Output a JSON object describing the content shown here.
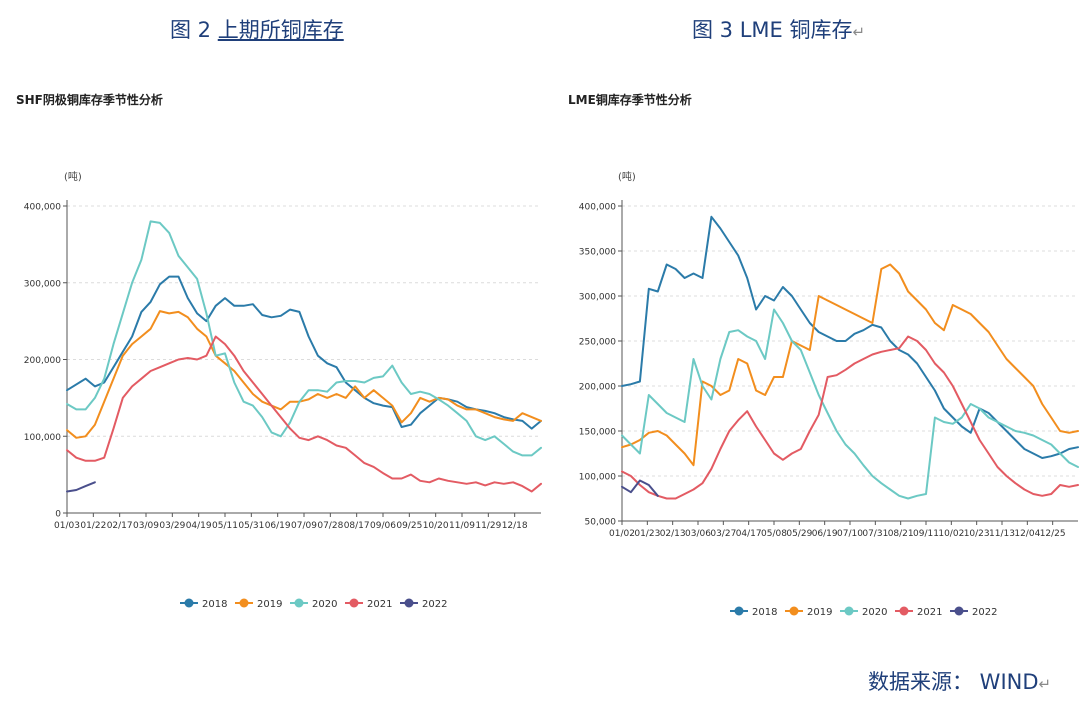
{
  "captions": {
    "left_prefix": "图 2",
    "left_title": "上期所铜库存",
    "right_text": "图 3 LME 铜库存",
    "return_mark": "↵"
  },
  "source": {
    "text": "数据来源： WIND"
  },
  "colors": {
    "2018": "#2b7ba9",
    "2019": "#f28e1e",
    "2020": "#6cc9c4",
    "2021": "#e35b63",
    "2022": "#4a4f8c"
  },
  "chart_data": [
    {
      "type": "line",
      "title": "SHF阴极铜库存季节性分析",
      "ylabel": "(吨)",
      "ylim": [
        0,
        400000
      ],
      "yticks": [
        0,
        100000,
        200000,
        300000,
        400000
      ],
      "ytick_labels": [
        "0",
        "100,000",
        "200,000",
        "300,000",
        "400,000"
      ],
      "xlim": [
        0,
        51
      ],
      "xtick_labels": [
        "01/03",
        "01/22",
        "02/17",
        "03/09",
        "03/29",
        "04/19",
        "05/11",
        "05/31",
        "06/19",
        "07/09",
        "07/28",
        "08/17",
        "09/06",
        "09/25",
        "10/20",
        "11/09",
        "11/29",
        "12/18"
      ],
      "grid": "horizontal-dashed",
      "legend_position": "bottom-center",
      "series": [
        {
          "name": "2018",
          "x": [
            0,
            2,
            3,
            4,
            6,
            7,
            8,
            9,
            10,
            11,
            12,
            13,
            14,
            15,
            16,
            17,
            18,
            19,
            20,
            21,
            22,
            23,
            24,
            25,
            26,
            27,
            28,
            29,
            30,
            31,
            32,
            33,
            34,
            35,
            36,
            37,
            38,
            39,
            40,
            41,
            42,
            43,
            44,
            45,
            46,
            47,
            48,
            49,
            50,
            51
          ],
          "y": [
            160000,
            175000,
            165000,
            170000,
            210000,
            230000,
            262000,
            275000,
            298000,
            308000,
            308000,
            280000,
            260000,
            250000,
            270000,
            280000,
            270000,
            270000,
            272000,
            258000,
            255000,
            257000,
            265000,
            262000,
            230000,
            205000,
            195000,
            190000,
            170000,
            160000,
            150000,
            143000,
            140000,
            138000,
            112000,
            115000,
            130000,
            140000,
            150000,
            148000,
            145000,
            138000,
            135000,
            133000,
            130000,
            125000,
            122000,
            120000,
            110000,
            120000
          ]
        },
        {
          "name": "2019",
          "x": [
            0,
            1,
            2,
            3,
            4,
            5,
            6,
            7,
            8,
            9,
            10,
            11,
            12,
            13,
            14,
            15,
            16,
            17,
            18,
            19,
            20,
            21,
            22,
            23,
            24,
            25,
            26,
            27,
            28,
            29,
            30,
            31,
            32,
            33,
            34,
            35,
            36,
            37,
            38,
            39,
            40,
            41,
            42,
            43,
            44,
            45,
            46,
            47,
            48,
            49,
            50,
            51
          ],
          "y": [
            108000,
            98000,
            100000,
            115000,
            145000,
            175000,
            205000,
            220000,
            230000,
            240000,
            263000,
            260000,
            262000,
            255000,
            240000,
            230000,
            205000,
            195000,
            185000,
            170000,
            155000,
            145000,
            140000,
            135000,
            145000,
            145000,
            148000,
            155000,
            150000,
            155000,
            150000,
            165000,
            150000,
            160000,
            150000,
            140000,
            118000,
            130000,
            150000,
            145000,
            150000,
            148000,
            140000,
            135000,
            135000,
            130000,
            125000,
            122000,
            120000,
            130000,
            125000,
            120000
          ]
        },
        {
          "name": "2020",
          "x": [
            0,
            1,
            2,
            3,
            4,
            5,
            6,
            7,
            8,
            9,
            10,
            11,
            12,
            13,
            14,
            15,
            16,
            17,
            18,
            19,
            20,
            21,
            22,
            23,
            24,
            25,
            26,
            27,
            28,
            29,
            30,
            31,
            32,
            33,
            34,
            35,
            36,
            37,
            38,
            39,
            40,
            41,
            42,
            43,
            44,
            45,
            46,
            47,
            48,
            49,
            50,
            51
          ],
          "y": [
            142000,
            135000,
            135000,
            150000,
            175000,
            220000,
            260000,
            300000,
            330000,
            380000,
            378000,
            365000,
            335000,
            320000,
            305000,
            260000,
            205000,
            208000,
            170000,
            145000,
            140000,
            125000,
            105000,
            100000,
            118000,
            145000,
            160000,
            160000,
            158000,
            170000,
            172000,
            172000,
            170000,
            176000,
            178000,
            192000,
            170000,
            155000,
            158000,
            155000,
            148000,
            140000,
            130000,
            120000,
            100000,
            95000,
            100000,
            90000,
            80000,
            75000,
            75000,
            85000
          ]
        },
        {
          "name": "2021",
          "x": [
            0,
            1,
            2,
            3,
            4,
            5,
            6,
            7,
            8,
            9,
            10,
            11,
            12,
            13,
            14,
            15,
            16,
            17,
            18,
            19,
            20,
            21,
            22,
            23,
            24,
            25,
            26,
            27,
            28,
            29,
            30,
            31,
            32,
            33,
            34,
            35,
            36,
            37,
            38,
            39,
            40,
            41,
            42,
            43,
            44,
            45,
            46,
            47,
            48,
            49,
            50,
            51
          ],
          "y": [
            82000,
            72000,
            68000,
            68000,
            72000,
            110000,
            150000,
            165000,
            175000,
            185000,
            190000,
            195000,
            200000,
            202000,
            200000,
            205000,
            230000,
            220000,
            205000,
            185000,
            170000,
            155000,
            140000,
            125000,
            110000,
            98000,
            95000,
            100000,
            95000,
            88000,
            85000,
            75000,
            65000,
            60000,
            52000,
            45000,
            45000,
            50000,
            42000,
            40000,
            45000,
            42000,
            40000,
            38000,
            40000,
            36000,
            40000,
            38000,
            40000,
            35000,
            28000,
            38000
          ]
        },
        {
          "name": "2022",
          "x": [
            0,
            1,
            2,
            3
          ],
          "y": [
            28000,
            30000,
            35000,
            40000
          ]
        }
      ]
    },
    {
      "type": "line",
      "title": "LME铜库存季节性分析",
      "ylabel": "(吨)",
      "ylim": [
        50000,
        400000
      ],
      "yticks": [
        50000,
        100000,
        150000,
        200000,
        250000,
        300000,
        350000,
        400000
      ],
      "ytick_labels": [
        "50,000",
        "100,000",
        "150,000",
        "200,000",
        "250,000",
        "300,000",
        "350,000",
        "400,000"
      ],
      "xlim": [
        0,
        51
      ],
      "xtick_labels": [
        "01/02",
        "01/23",
        "02/13",
        "03/06",
        "03/27",
        "04/17",
        "05/08",
        "05/29",
        "06/19",
        "07/10",
        "07/31",
        "08/21",
        "09/11",
        "10/02",
        "10/23",
        "11/13",
        "12/04",
        "12/25"
      ],
      "grid": "horizontal-dashed",
      "legend_position": "bottom-center",
      "series": [
        {
          "name": "2018",
          "x": [
            0,
            1,
            2,
            3,
            4,
            5,
            6,
            7,
            8,
            9,
            10,
            11,
            12,
            13,
            14,
            15,
            16,
            17,
            18,
            19,
            20,
            21,
            22,
            23,
            24,
            25,
            26,
            27,
            28,
            29,
            30,
            31,
            32,
            33,
            34,
            35,
            36,
            37,
            38,
            39,
            40,
            41,
            42,
            43,
            44,
            45,
            46,
            47,
            48,
            49,
            50,
            51
          ],
          "y": [
            200000,
            202000,
            205000,
            308000,
            305000,
            335000,
            330000,
            320000,
            325000,
            320000,
            388000,
            375000,
            360000,
            345000,
            320000,
            285000,
            300000,
            295000,
            310000,
            300000,
            285000,
            270000,
            260000,
            255000,
            250000,
            250000,
            258000,
            262000,
            268000,
            265000,
            250000,
            240000,
            235000,
            225000,
            210000,
            195000,
            175000,
            165000,
            155000,
            148000,
            175000,
            170000,
            160000,
            150000,
            140000,
            130000,
            125000,
            120000,
            122000,
            125000,
            130000,
            132000
          ]
        },
        {
          "name": "2019",
          "x": [
            0,
            1,
            2,
            3,
            4,
            5,
            6,
            7,
            8,
            9,
            10,
            11,
            12,
            13,
            14,
            15,
            16,
            17,
            18,
            19,
            20,
            21,
            22,
            23,
            24,
            25,
            26,
            27,
            28,
            29,
            30,
            31,
            32,
            33,
            34,
            35,
            36,
            37,
            38,
            39,
            40,
            41,
            42,
            43,
            44,
            45,
            46,
            47,
            48,
            49,
            50,
            51
          ],
          "y": [
            132000,
            135000,
            140000,
            148000,
            150000,
            145000,
            135000,
            125000,
            112000,
            205000,
            200000,
            190000,
            195000,
            230000,
            225000,
            195000,
            190000,
            210000,
            210000,
            250000,
            245000,
            240000,
            300000,
            295000,
            290000,
            285000,
            280000,
            275000,
            270000,
            330000,
            335000,
            325000,
            305000,
            295000,
            285000,
            270000,
            262000,
            290000,
            285000,
            280000,
            270000,
            260000,
            245000,
            230000,
            220000,
            210000,
            200000,
            180000,
            165000,
            150000,
            148000,
            150000
          ]
        },
        {
          "name": "2020",
          "x": [
            0,
            1,
            2,
            3,
            4,
            5,
            6,
            7,
            8,
            9,
            10,
            11,
            12,
            13,
            14,
            15,
            16,
            17,
            18,
            19,
            20,
            21,
            22,
            23,
            24,
            25,
            26,
            27,
            28,
            29,
            30,
            31,
            32,
            33,
            34,
            35,
            36,
            37,
            38,
            39,
            40,
            41,
            42,
            43,
            44,
            45,
            46,
            47,
            48,
            49,
            50,
            51
          ],
          "y": [
            145000,
            135000,
            125000,
            190000,
            180000,
            170000,
            165000,
            160000,
            230000,
            200000,
            185000,
            230000,
            260000,
            262000,
            255000,
            250000,
            230000,
            285000,
            270000,
            250000,
            240000,
            215000,
            190000,
            170000,
            150000,
            135000,
            125000,
            112000,
            100000,
            92000,
            85000,
            78000,
            75000,
            78000,
            80000,
            165000,
            160000,
            158000,
            165000,
            180000,
            175000,
            165000,
            160000,
            155000,
            150000,
            148000,
            145000,
            140000,
            135000,
            125000,
            115000,
            110000
          ]
        },
        {
          "name": "2021",
          "x": [
            0,
            1,
            2,
            3,
            4,
            5,
            6,
            7,
            8,
            9,
            10,
            11,
            12,
            13,
            14,
            15,
            16,
            17,
            18,
            19,
            20,
            21,
            22,
            23,
            24,
            25,
            26,
            27,
            28,
            29,
            30,
            31,
            32,
            33,
            34,
            35,
            36,
            37,
            38,
            39,
            40,
            41,
            42,
            43,
            44,
            45,
            46,
            47,
            48,
            49,
            50,
            51
          ],
          "y": [
            105000,
            100000,
            90000,
            82000,
            78000,
            75000,
            75000,
            80000,
            85000,
            92000,
            108000,
            130000,
            150000,
            162000,
            172000,
            155000,
            140000,
            125000,
            118000,
            125000,
            130000,
            150000,
            168000,
            210000,
            212000,
            218000,
            225000,
            230000,
            235000,
            238000,
            240000,
            242000,
            255000,
            250000,
            240000,
            225000,
            215000,
            200000,
            180000,
            160000,
            140000,
            125000,
            110000,
            100000,
            92000,
            85000,
            80000,
            78000,
            80000,
            90000,
            88000,
            90000
          ]
        },
        {
          "name": "2022",
          "x": [
            0,
            1,
            2,
            3,
            4
          ],
          "y": [
            88000,
            82000,
            95000,
            90000,
            78000
          ]
        }
      ]
    }
  ]
}
